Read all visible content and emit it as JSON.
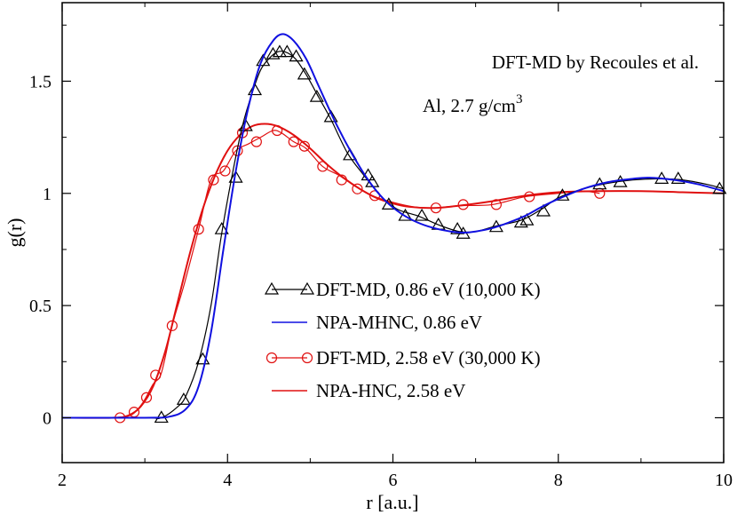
{
  "chart_data": {
    "type": "line",
    "title": "",
    "xlabel": "r [a.u.]",
    "ylabel": "g(r)",
    "xlim": [
      2,
      10
    ],
    "ylim": [
      -0.2,
      1.85
    ],
    "x_ticks": [
      2,
      4,
      6,
      8,
      10
    ],
    "y_ticks": [
      0,
      0.5,
      1,
      1.5
    ],
    "x_tick_labels": [
      "2",
      "4",
      "6",
      "8",
      "10"
    ],
    "y_tick_labels": [
      "0",
      "0.5",
      "1",
      "1.5"
    ],
    "grid": false,
    "legend_position": "center-right",
    "annotations": {
      "line1": "DFT-MD by Recoules et al.",
      "line2_main": "Al, 2.7 g/cm",
      "line2_sup": "3"
    },
    "series": [
      {
        "name": "DFT-MD, 0.86 eV (10,000 K)",
        "color": "#000000",
        "marker": "triangle",
        "curve": [
          [
            2.0,
            0.0
          ],
          [
            3.0,
            0.0
          ],
          [
            3.2,
            0.0
          ],
          [
            3.4,
            0.05
          ],
          [
            3.5,
            0.1
          ],
          [
            3.65,
            0.25
          ],
          [
            3.8,
            0.5
          ],
          [
            3.92,
            0.8
          ],
          [
            4.05,
            1.07
          ],
          [
            4.18,
            1.3
          ],
          [
            4.3,
            1.45
          ],
          [
            4.4,
            1.55
          ],
          [
            4.5,
            1.6
          ],
          [
            4.6,
            1.63
          ],
          [
            4.7,
            1.63
          ],
          [
            4.82,
            1.6
          ],
          [
            4.95,
            1.53
          ],
          [
            5.1,
            1.43
          ],
          [
            5.25,
            1.33
          ],
          [
            5.45,
            1.18
          ],
          [
            5.65,
            1.08
          ],
          [
            5.85,
            0.99
          ],
          [
            6.05,
            0.93
          ],
          [
            6.3,
            0.9
          ],
          [
            6.55,
            0.86
          ],
          [
            6.8,
            0.83
          ],
          [
            7.0,
            0.83
          ],
          [
            7.25,
            0.855
          ],
          [
            7.55,
            0.88
          ],
          [
            7.8,
            0.93
          ],
          [
            8.0,
            0.98
          ],
          [
            8.3,
            1.02
          ],
          [
            8.6,
            1.045
          ],
          [
            8.9,
            1.06
          ],
          [
            9.2,
            1.065
          ],
          [
            9.5,
            1.06
          ],
          [
            9.8,
            1.04
          ],
          [
            10.0,
            1.02
          ]
        ],
        "markers": [
          [
            3.2,
            0.0
          ],
          [
            3.47,
            0.08
          ],
          [
            3.7,
            0.26
          ],
          [
            3.93,
            0.84
          ],
          [
            4.1,
            1.07
          ],
          [
            4.22,
            1.3
          ],
          [
            4.33,
            1.46
          ],
          [
            4.43,
            1.59
          ],
          [
            4.55,
            1.62
          ],
          [
            4.63,
            1.63
          ],
          [
            4.72,
            1.63
          ],
          [
            4.83,
            1.61
          ],
          [
            4.93,
            1.53
          ],
          [
            5.08,
            1.43
          ],
          [
            5.25,
            1.34
          ],
          [
            5.48,
            1.17
          ],
          [
            5.7,
            1.08
          ],
          [
            5.75,
            1.05
          ],
          [
            5.95,
            0.95
          ],
          [
            6.15,
            0.9
          ],
          [
            6.35,
            0.9
          ],
          [
            6.55,
            0.86
          ],
          [
            6.78,
            0.84
          ],
          [
            6.85,
            0.82
          ],
          [
            7.25,
            0.85
          ],
          [
            7.55,
            0.87
          ],
          [
            7.62,
            0.88
          ],
          [
            7.82,
            0.92
          ],
          [
            8.05,
            0.99
          ],
          [
            8.5,
            1.04
          ],
          [
            8.75,
            1.05
          ],
          [
            9.25,
            1.065
          ],
          [
            9.45,
            1.065
          ],
          [
            9.95,
            1.02
          ]
        ]
      },
      {
        "name": "NPA-MHNC, 0.86 eV",
        "color": "#1010e0",
        "marker": "none",
        "curve": [
          [
            2.0,
            0.0
          ],
          [
            3.0,
            0.0
          ],
          [
            3.3,
            0.005
          ],
          [
            3.5,
            0.04
          ],
          [
            3.65,
            0.14
          ],
          [
            3.8,
            0.38
          ],
          [
            3.95,
            0.75
          ],
          [
            4.1,
            1.1
          ],
          [
            4.25,
            1.38
          ],
          [
            4.4,
            1.58
          ],
          [
            4.55,
            1.68
          ],
          [
            4.67,
            1.71
          ],
          [
            4.8,
            1.68
          ],
          [
            4.95,
            1.6
          ],
          [
            5.1,
            1.48
          ],
          [
            5.3,
            1.32
          ],
          [
            5.5,
            1.18
          ],
          [
            5.7,
            1.06
          ],
          [
            5.9,
            0.97
          ],
          [
            6.1,
            0.91
          ],
          [
            6.3,
            0.87
          ],
          [
            6.5,
            0.845
          ],
          [
            6.7,
            0.83
          ],
          [
            6.85,
            0.825
          ],
          [
            7.0,
            0.83
          ],
          [
            7.2,
            0.845
          ],
          [
            7.4,
            0.87
          ],
          [
            7.6,
            0.9
          ],
          [
            7.8,
            0.94
          ],
          [
            8.0,
            0.975
          ],
          [
            8.3,
            1.02
          ],
          [
            8.6,
            1.05
          ],
          [
            8.9,
            1.065
          ],
          [
            9.1,
            1.07
          ],
          [
            9.4,
            1.06
          ],
          [
            9.7,
            1.04
          ],
          [
            10.0,
            1.01
          ]
        ],
        "markers": []
      },
      {
        "name": "DFT-MD, 2.58 eV (30,000 K)",
        "color": "#e01010",
        "marker": "circle",
        "curve": [
          [
            2.7,
            0.0
          ],
          [
            2.85,
            0.015
          ],
          [
            2.98,
            0.07
          ],
          [
            3.1,
            0.15
          ],
          [
            3.2,
            0.2
          ],
          [
            3.33,
            0.41
          ],
          [
            3.48,
            0.6
          ],
          [
            3.65,
            0.84
          ],
          [
            3.8,
            1.06
          ],
          [
            3.95,
            1.1
          ],
          [
            4.1,
            1.19
          ],
          [
            4.25,
            1.22
          ],
          [
            4.4,
            1.25
          ],
          [
            4.55,
            1.28
          ],
          [
            4.65,
            1.27
          ],
          [
            4.8,
            1.23
          ],
          [
            4.95,
            1.2
          ],
          [
            5.15,
            1.12
          ],
          [
            5.35,
            1.08
          ],
          [
            5.55,
            1.03
          ],
          [
            5.75,
            0.99
          ],
          [
            6.0,
            0.96
          ],
          [
            6.25,
            0.94
          ],
          [
            6.5,
            0.935
          ],
          [
            6.8,
            0.945
          ],
          [
            7.2,
            0.95
          ],
          [
            7.6,
            0.985
          ],
          [
            8.0,
            1.0
          ],
          [
            8.3,
            1.01
          ],
          [
            8.5,
            1.0
          ]
        ],
        "markers": [
          [
            2.7,
            0.0
          ],
          [
            2.87,
            0.025
          ],
          [
            3.02,
            0.09
          ],
          [
            3.13,
            0.19
          ],
          [
            3.33,
            0.41
          ],
          [
            3.65,
            0.84
          ],
          [
            3.83,
            1.06
          ],
          [
            3.97,
            1.1
          ],
          [
            4.12,
            1.19
          ],
          [
            4.18,
            1.27
          ],
          [
            4.35,
            1.23
          ],
          [
            4.6,
            1.28
          ],
          [
            4.8,
            1.23
          ],
          [
            4.93,
            1.21
          ],
          [
            5.15,
            1.12
          ],
          [
            5.38,
            1.06
          ],
          [
            5.57,
            1.02
          ],
          [
            5.78,
            0.99
          ],
          [
            6.52,
            0.935
          ],
          [
            6.85,
            0.95
          ],
          [
            7.25,
            0.95
          ],
          [
            7.65,
            0.985
          ],
          [
            8.5,
            1.0
          ]
        ]
      },
      {
        "name": "NPA-HNC, 2.58 eV",
        "color": "#e01010",
        "marker": "none",
        "curve": [
          [
            2.0,
            0.0
          ],
          [
            2.6,
            0.0
          ],
          [
            2.8,
            0.01
          ],
          [
            2.95,
            0.05
          ],
          [
            3.1,
            0.14
          ],
          [
            3.25,
            0.3
          ],
          [
            3.4,
            0.52
          ],
          [
            3.55,
            0.74
          ],
          [
            3.7,
            0.93
          ],
          [
            3.85,
            1.08
          ],
          [
            4.0,
            1.19
          ],
          [
            4.15,
            1.26
          ],
          [
            4.3,
            1.3
          ],
          [
            4.45,
            1.31
          ],
          [
            4.6,
            1.3
          ],
          [
            4.8,
            1.26
          ],
          [
            5.0,
            1.2
          ],
          [
            5.2,
            1.13
          ],
          [
            5.4,
            1.07
          ],
          [
            5.6,
            1.02
          ],
          [
            5.8,
            0.98
          ],
          [
            6.0,
            0.955
          ],
          [
            6.2,
            0.94
          ],
          [
            6.5,
            0.935
          ],
          [
            6.8,
            0.945
          ],
          [
            7.2,
            0.965
          ],
          [
            7.6,
            0.99
          ],
          [
            8.0,
            1.005
          ],
          [
            8.5,
            1.01
          ],
          [
            9.0,
            1.01
          ],
          [
            9.5,
            1.005
          ],
          [
            10.0,
            1.0
          ]
        ],
        "markers": []
      }
    ]
  }
}
